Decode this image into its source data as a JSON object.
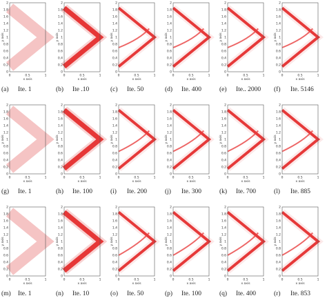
{
  "axes": {
    "x_label": "x axis",
    "y_label": "y axis",
    "x_ticks": [
      "0",
      "0.5",
      "1"
    ],
    "y_ticks": [
      "0",
      "0.2",
      "0.4",
      "0.6",
      "0.8",
      "1",
      "1.2",
      "1.4",
      "1.6",
      "1.8",
      "2"
    ]
  },
  "panels": [
    {
      "label": "(a)",
      "caption": "Ite. 1"
    },
    {
      "label": "(b)",
      "caption": "Ite .10"
    },
    {
      "label": "(c)",
      "caption": "Ite. 50"
    },
    {
      "label": "(d)",
      "caption": "Ite. 400"
    },
    {
      "label": "(e)",
      "caption": "Ite.. 2000"
    },
    {
      "label": "(f)",
      "caption": "Ite. 5146"
    },
    {
      "label": "(g)",
      "caption": "Ite. 1"
    },
    {
      "label": "(h)",
      "caption": "Ite. 100"
    },
    {
      "label": "(i)",
      "caption": "Ite. 200"
    },
    {
      "label": "(j)",
      "caption": "Ite. 300"
    },
    {
      "label": "(k)",
      "caption": "Ite. 700"
    },
    {
      "label": "(l)",
      "caption": "Ite. 885"
    },
    {
      "label": "(m)",
      "caption": "Ite. 1"
    },
    {
      "label": "(n)",
      "caption": "Ite. 10"
    },
    {
      "label": "(o)",
      "caption": "Ite. 50"
    },
    {
      "label": "(p)",
      "caption": "Ite. 100"
    },
    {
      "label": "(q)",
      "caption": "Ite. 400"
    },
    {
      "label": "(r)",
      "caption": "Ite. 853"
    }
  ]
}
